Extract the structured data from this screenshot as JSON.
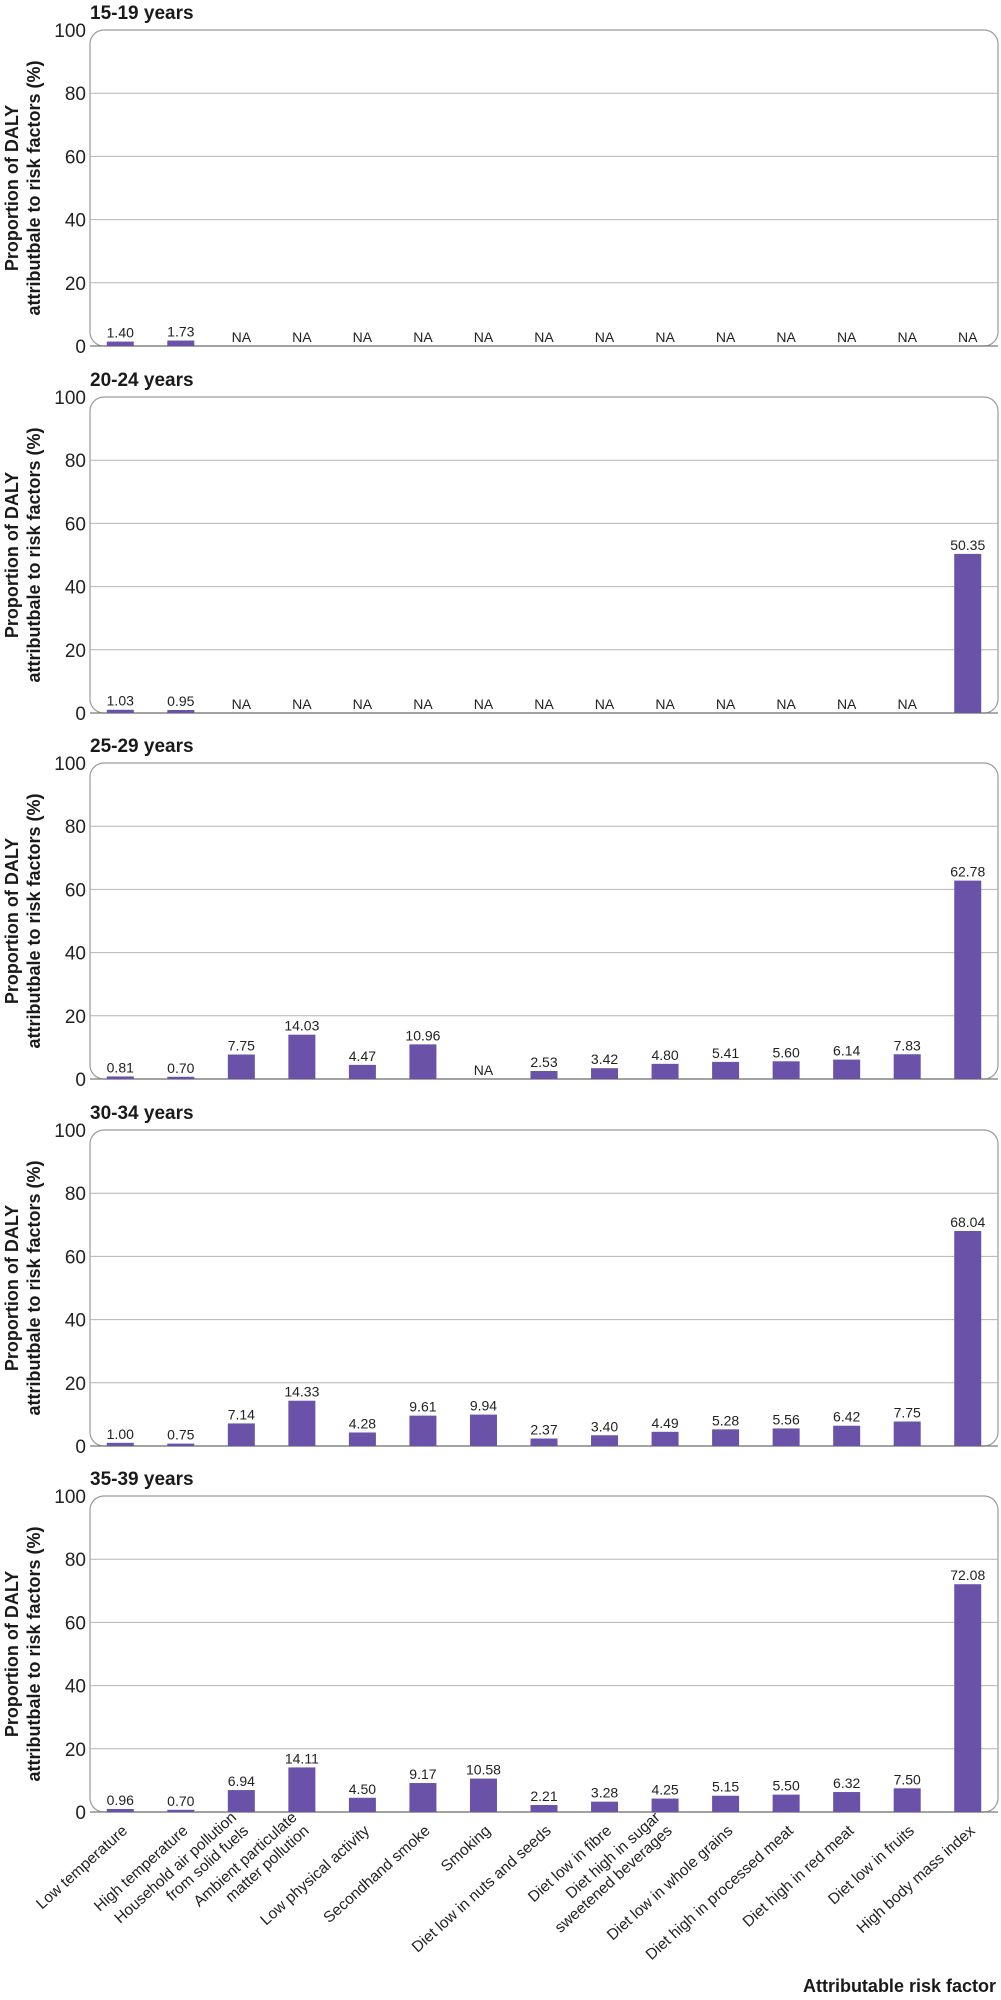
{
  "chart_data": {
    "type": "bar",
    "xlabel": "Attributable risk factor",
    "ylabel_line1": "Proportion of DALY",
    "ylabel_line2": "attributbale to risk factors (%)",
    "ylim": [
      0,
      100
    ],
    "yticks": [
      0,
      20,
      40,
      60,
      80,
      100
    ],
    "grid": true,
    "bar_color": "#6a52a8",
    "categories": [
      "Low temperature",
      "High temperature",
      "Household air pollution from solid fuels",
      "Ambient particulate matter pollution",
      "Low physical activity",
      "Secondhand smoke",
      "Smoking",
      "Diet low in nuts and seeds",
      "Diet low in fibre",
      "Diet high in sugar sweetened beverages",
      "Diet low in whole grains",
      "Diet high in processed meat",
      "Diet high in red meat",
      "Diet low in fruits",
      "High body mass index"
    ],
    "category_lines": [
      [
        "Low temperature"
      ],
      [
        "High temperature"
      ],
      [
        "Household air pollution",
        "from solid fuels"
      ],
      [
        "Ambient particulate",
        "matter pollution"
      ],
      [
        "Low physical activity"
      ],
      [
        "Secondhand smoke"
      ],
      [
        "Smoking"
      ],
      [
        "Diet low in nuts and seeds"
      ],
      [
        "Diet low in fibre"
      ],
      [
        "Diet high in sugar",
        "sweetened beverages"
      ],
      [
        "Diet low in whole grains"
      ],
      [
        "Diet high in processed meat"
      ],
      [
        "Diet high in red meat"
      ],
      [
        "Diet low in fruits"
      ],
      [
        "High body mass index"
      ]
    ],
    "panels": [
      {
        "title": "15-19 years",
        "values": [
          1.4,
          1.73,
          null,
          null,
          null,
          null,
          null,
          null,
          null,
          null,
          null,
          null,
          null,
          null,
          null
        ],
        "labels": [
          "1.40",
          "1.73",
          "NA",
          "NA",
          "NA",
          "NA",
          "NA",
          "NA",
          "NA",
          "NA",
          "NA",
          "NA",
          "NA",
          "NA",
          "NA"
        ]
      },
      {
        "title": "20-24 years",
        "values": [
          1.03,
          0.95,
          null,
          null,
          null,
          null,
          null,
          null,
          null,
          null,
          null,
          null,
          null,
          null,
          50.35
        ],
        "labels": [
          "1.03",
          "0.95",
          "NA",
          "NA",
          "NA",
          "NA",
          "NA",
          "NA",
          "NA",
          "NA",
          "NA",
          "NA",
          "NA",
          "NA",
          "50.35"
        ]
      },
      {
        "title": "25-29 years",
        "values": [
          0.81,
          0.7,
          7.75,
          14.03,
          4.47,
          10.96,
          null,
          2.53,
          3.42,
          4.8,
          5.41,
          5.6,
          6.14,
          7.83,
          62.78
        ],
        "labels": [
          "0.81",
          "0.70",
          "7.75",
          "14.03",
          "4.47",
          "10.96",
          "NA",
          "2.53",
          "3.42",
          "4.80",
          "5.41",
          "5.60",
          "6.14",
          "7.83",
          "62.78"
        ]
      },
      {
        "title": "30-34 years",
        "values": [
          1.0,
          0.75,
          7.14,
          14.33,
          4.28,
          9.61,
          9.94,
          2.37,
          3.4,
          4.49,
          5.28,
          5.56,
          6.42,
          7.75,
          68.04
        ],
        "labels": [
          "1.00",
          "0.75",
          "7.14",
          "14.33",
          "4.28",
          "9.61",
          "9.94",
          "2.37",
          "3.40",
          "4.49",
          "5.28",
          "5.56",
          "6.42",
          "7.75",
          "68.04"
        ]
      },
      {
        "title": "35-39 years",
        "values": [
          0.96,
          0.7,
          6.94,
          14.11,
          4.5,
          9.17,
          10.58,
          2.21,
          3.28,
          4.25,
          5.15,
          5.5,
          6.32,
          7.5,
          72.08
        ],
        "labels": [
          "0.96",
          "0.70",
          "6.94",
          "14.11",
          "4.50",
          "9.17",
          "10.58",
          "2.21",
          "3.28",
          "4.25",
          "5.15",
          "5.50",
          "6.32",
          "7.50",
          "72.08"
        ]
      }
    ]
  }
}
